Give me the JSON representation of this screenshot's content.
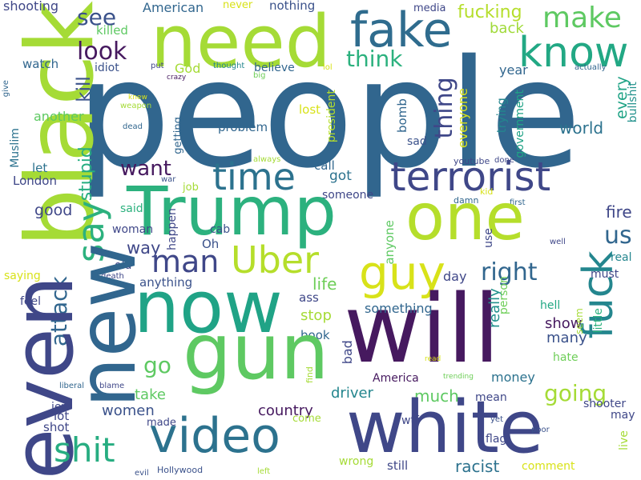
{
  "palette": {
    "dark_purple": "#46195f",
    "indigo": "#3f4788",
    "blue": "#31668e",
    "teal": "#24868e",
    "green": "#27ad81",
    "light_green": "#5ec962",
    "lime": "#addc30",
    "yellow": "#d8e219"
  },
  "words": [
    {
      "text": "people",
      "color": "#31668e"
    },
    {
      "text": "black",
      "color": "#a5db36"
    },
    {
      "text": "need",
      "color": "#a5db36"
    },
    {
      "text": "fake",
      "color": "#2f6c8e"
    },
    {
      "text": "know",
      "color": "#22a884"
    },
    {
      "text": "make",
      "color": "#5ec962"
    },
    {
      "text": "see",
      "color": "#3b528b"
    },
    {
      "text": "look",
      "color": "#46195f"
    },
    {
      "text": "fucking",
      "color": "#b5de2b"
    },
    {
      "text": "back",
      "color": "#a0da39"
    },
    {
      "text": "American",
      "color": "#31668e"
    },
    {
      "text": "never",
      "color": "#d8e219"
    },
    {
      "text": "nothing",
      "color": "#3b528b"
    },
    {
      "text": "media",
      "color": "#3f4788"
    },
    {
      "text": "shooting",
      "color": "#3f4788"
    },
    {
      "text": "killed",
      "color": "#5ec962"
    },
    {
      "text": "watch",
      "color": "#31668e"
    },
    {
      "text": "idiot",
      "color": "#3b528b"
    },
    {
      "text": "God",
      "color": "#a5db36"
    },
    {
      "text": "put",
      "color": "#3f4788"
    },
    {
      "text": "crazy",
      "color": "#46195f"
    },
    {
      "text": "thought",
      "color": "#24868e"
    },
    {
      "text": "big",
      "color": "#6ece58"
    },
    {
      "text": "believe",
      "color": "#31668e"
    },
    {
      "text": "lol",
      "color": "#d8e219"
    },
    {
      "text": "actually",
      "color": "#31668e"
    },
    {
      "text": "think",
      "color": "#2cb17e"
    },
    {
      "text": "thing",
      "color": "#3f4788"
    },
    {
      "text": "year",
      "color": "#31668e"
    },
    {
      "text": "every",
      "color": "#20a386"
    },
    {
      "text": "bullshit",
      "color": "#21918c"
    },
    {
      "text": "kill",
      "color": "#3b528b"
    },
    {
      "text": "give",
      "color": "#31668e"
    },
    {
      "text": "knew",
      "color": "#d8e219"
    },
    {
      "text": "weapon",
      "color": "#a5db36"
    },
    {
      "text": "lost",
      "color": "#d8e219"
    },
    {
      "text": "president",
      "color": "#b5de2b"
    },
    {
      "text": "everyone",
      "color": "#d8e219"
    },
    {
      "text": "trying",
      "color": "#24868e"
    },
    {
      "text": "government",
      "color": "#20a386"
    },
    {
      "text": "another",
      "color": "#5ec962"
    },
    {
      "text": "dead",
      "color": "#31668e"
    },
    {
      "text": "getting",
      "color": "#31668e"
    },
    {
      "text": "problem",
      "color": "#31668e"
    },
    {
      "text": "bomb",
      "color": "#31668e"
    },
    {
      "text": "world",
      "color": "#2c728e"
    },
    {
      "text": "Muslim",
      "color": "#2c728e"
    },
    {
      "text": "stupid",
      "color": "#26ad81"
    },
    {
      "text": "always",
      "color": "#a5db36"
    },
    {
      "text": "sad",
      "color": "#3b528b"
    },
    {
      "text": "youtube",
      "color": "#3f4788"
    },
    {
      "text": "done",
      "color": "#3f4788"
    },
    {
      "text": "want",
      "color": "#46195f"
    },
    {
      "text": "time",
      "color": "#2c728e"
    },
    {
      "text": "terrorist",
      "color": "#3f4788"
    },
    {
      "text": "call",
      "color": "#31668e"
    },
    {
      "text": "got",
      "color": "#2c728e"
    },
    {
      "text": "war",
      "color": "#3b528b"
    },
    {
      "text": "kid",
      "color": "#d8e219"
    },
    {
      "text": "damn",
      "color": "#31668e"
    },
    {
      "text": "first",
      "color": "#31668e"
    },
    {
      "text": "let",
      "color": "#2c728e"
    },
    {
      "text": "London",
      "color": "#3f4788"
    },
    {
      "text": "job",
      "color": "#a5db36"
    },
    {
      "text": "someone",
      "color": "#3f4788"
    },
    {
      "text": "good",
      "color": "#3f4788"
    },
    {
      "text": "say",
      "color": "#2cb17e"
    },
    {
      "text": "said",
      "color": "#2cb17e"
    },
    {
      "text": "Trump",
      "color": "#2cb17e"
    },
    {
      "text": "one",
      "color": "#b5de2b"
    },
    {
      "text": "fire",
      "color": "#3f4788"
    },
    {
      "text": "us",
      "color": "#31668e"
    },
    {
      "text": "happen",
      "color": "#3f4788"
    },
    {
      "text": "woman",
      "color": "#3f4788"
    },
    {
      "text": "cab",
      "color": "#3b528b"
    },
    {
      "text": "way",
      "color": "#3f4788"
    },
    {
      "text": "Oh",
      "color": "#3b528b"
    },
    {
      "text": "use",
      "color": "#3f4788"
    },
    {
      "text": "well",
      "color": "#3f4788"
    },
    {
      "text": "real",
      "color": "#24868e"
    },
    {
      "text": "man",
      "color": "#3f4788"
    },
    {
      "text": "Uber",
      "color": "#b5de2b"
    },
    {
      "text": "guy",
      "color": "#d8e219"
    },
    {
      "text": "anyone",
      "color": "#5ec962"
    },
    {
      "text": "old",
      "color": "#3f4788"
    },
    {
      "text": "right",
      "color": "#31668e"
    },
    {
      "text": "fuck",
      "color": "#24868e"
    },
    {
      "text": "must",
      "color": "#3f4788"
    },
    {
      "text": "saying",
      "color": "#d8e219"
    },
    {
      "text": "death",
      "color": "#3f4788"
    },
    {
      "text": "anything",
      "color": "#3b528b"
    },
    {
      "text": "day",
      "color": "#3f4788"
    },
    {
      "text": "life",
      "color": "#6ece58"
    },
    {
      "text": "attack",
      "color": "#31668e"
    },
    {
      "text": "new",
      "color": "#31668e"
    },
    {
      "text": "now",
      "color": "#20a386"
    },
    {
      "text": "will",
      "color": "#46195f"
    },
    {
      "text": "feel",
      "color": "#3f4788"
    },
    {
      "text": "ass",
      "color": "#3f4788"
    },
    {
      "text": "really",
      "color": "#21918c"
    },
    {
      "text": "person",
      "color": "#6ece58"
    },
    {
      "text": "something",
      "color": "#31668e"
    },
    {
      "text": "hell",
      "color": "#22a884"
    },
    {
      "text": "stop",
      "color": "#a5db36"
    },
    {
      "text": "show",
      "color": "#46195f"
    },
    {
      "text": "seem",
      "color": "#a5db36"
    },
    {
      "text": "little",
      "color": "#2cb17e"
    },
    {
      "text": "many",
      "color": "#3b528b"
    },
    {
      "text": "book",
      "color": "#31668e"
    },
    {
      "text": "bad",
      "color": "#3f4788"
    },
    {
      "text": "hate",
      "color": "#6ece58"
    },
    {
      "text": "read",
      "color": "#d8e219"
    },
    {
      "text": "trending",
      "color": "#6ece58"
    },
    {
      "text": "go",
      "color": "#5ec962"
    },
    {
      "text": "gun",
      "color": "#5ec962"
    },
    {
      "text": "find",
      "color": "#a5db36"
    },
    {
      "text": "America",
      "color": "#46195f"
    },
    {
      "text": "money",
      "color": "#2c728e"
    },
    {
      "text": "going",
      "color": "#a5db36"
    },
    {
      "text": "liberal",
      "color": "#31668e"
    },
    {
      "text": "blame",
      "color": "#3f4788"
    },
    {
      "text": "driver",
      "color": "#24868e"
    },
    {
      "text": "much",
      "color": "#5ec962"
    },
    {
      "text": "mean",
      "color": "#3f4788"
    },
    {
      "text": "even",
      "color": "#3f4788"
    },
    {
      "text": "take",
      "color": "#5ec962"
    },
    {
      "text": "jew",
      "color": "#3f4788"
    },
    {
      "text": "women",
      "color": "#3b528b"
    },
    {
      "text": "country",
      "color": "#46195f"
    },
    {
      "text": "white",
      "color": "#3f4788"
    },
    {
      "text": "shooter",
      "color": "#3f4788"
    },
    {
      "text": "may",
      "color": "#3f4788"
    },
    {
      "text": "lot",
      "color": "#3f4788"
    },
    {
      "text": "made",
      "color": "#3f4788"
    },
    {
      "text": "come",
      "color": "#a5db36"
    },
    {
      "text": "yet",
      "color": "#3b528b"
    },
    {
      "text": "poor",
      "color": "#3b528b"
    },
    {
      "text": "shot",
      "color": "#3f4788"
    },
    {
      "text": "video",
      "color": "#2c728e"
    },
    {
      "text": "wtf",
      "color": "#3f4788"
    },
    {
      "text": "flag",
      "color": "#3f4788"
    },
    {
      "text": "live",
      "color": "#a5db36"
    },
    {
      "text": "shit",
      "color": "#27ad81"
    },
    {
      "text": "wrong",
      "color": "#a5db36"
    },
    {
      "text": "still",
      "color": "#3f4788"
    },
    {
      "text": "racist",
      "color": "#2c728e"
    },
    {
      "text": "comment",
      "color": "#d8e219"
    },
    {
      "text": "evil",
      "color": "#3b528b"
    },
    {
      "text": "Hollywood",
      "color": "#3b528b"
    },
    {
      "text": "left",
      "color": "#a5db36"
    }
  ]
}
